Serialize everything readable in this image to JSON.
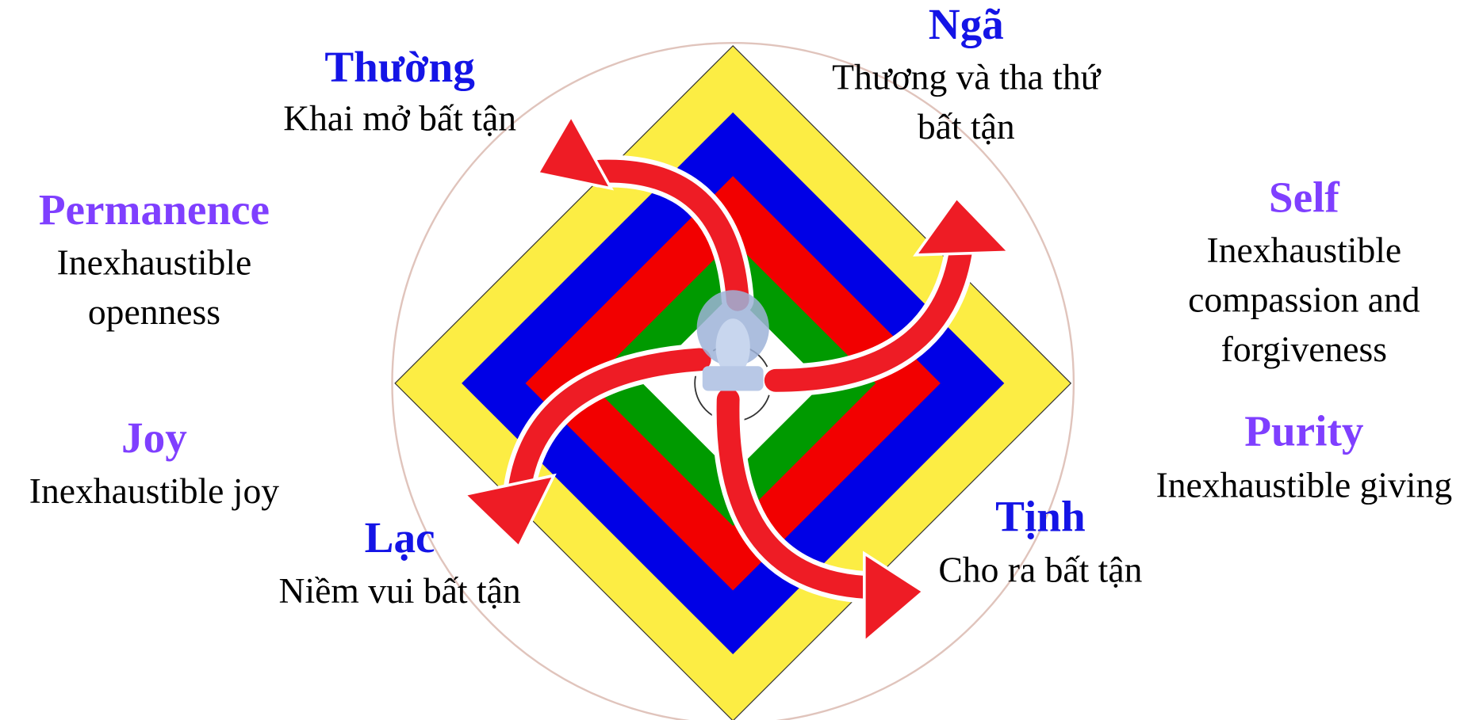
{
  "vietnamese": [
    {
      "title": "Thường",
      "lines": [
        "Khai mở bất tận"
      ]
    },
    {
      "title": "Ngã",
      "lines": [
        "Thương và tha thứ",
        "bất tận"
      ]
    },
    {
      "title": "Lạc",
      "lines": [
        "Niềm vui bất tận"
      ]
    },
    {
      "title": "Tịnh",
      "lines": [
        "Cho ra bất tận"
      ]
    }
  ],
  "english": [
    {
      "title": "Permanence",
      "lines": [
        "Inexhaustible",
        "openness"
      ]
    },
    {
      "title": "Self",
      "lines": [
        "Inexhaustible",
        "compassion and",
        "forgiveness"
      ]
    },
    {
      "title": "Joy",
      "lines": [
        "Inexhaustible joy"
      ]
    },
    {
      "title": "Purity",
      "lines": [
        "Inexhaustible giving"
      ]
    }
  ]
}
